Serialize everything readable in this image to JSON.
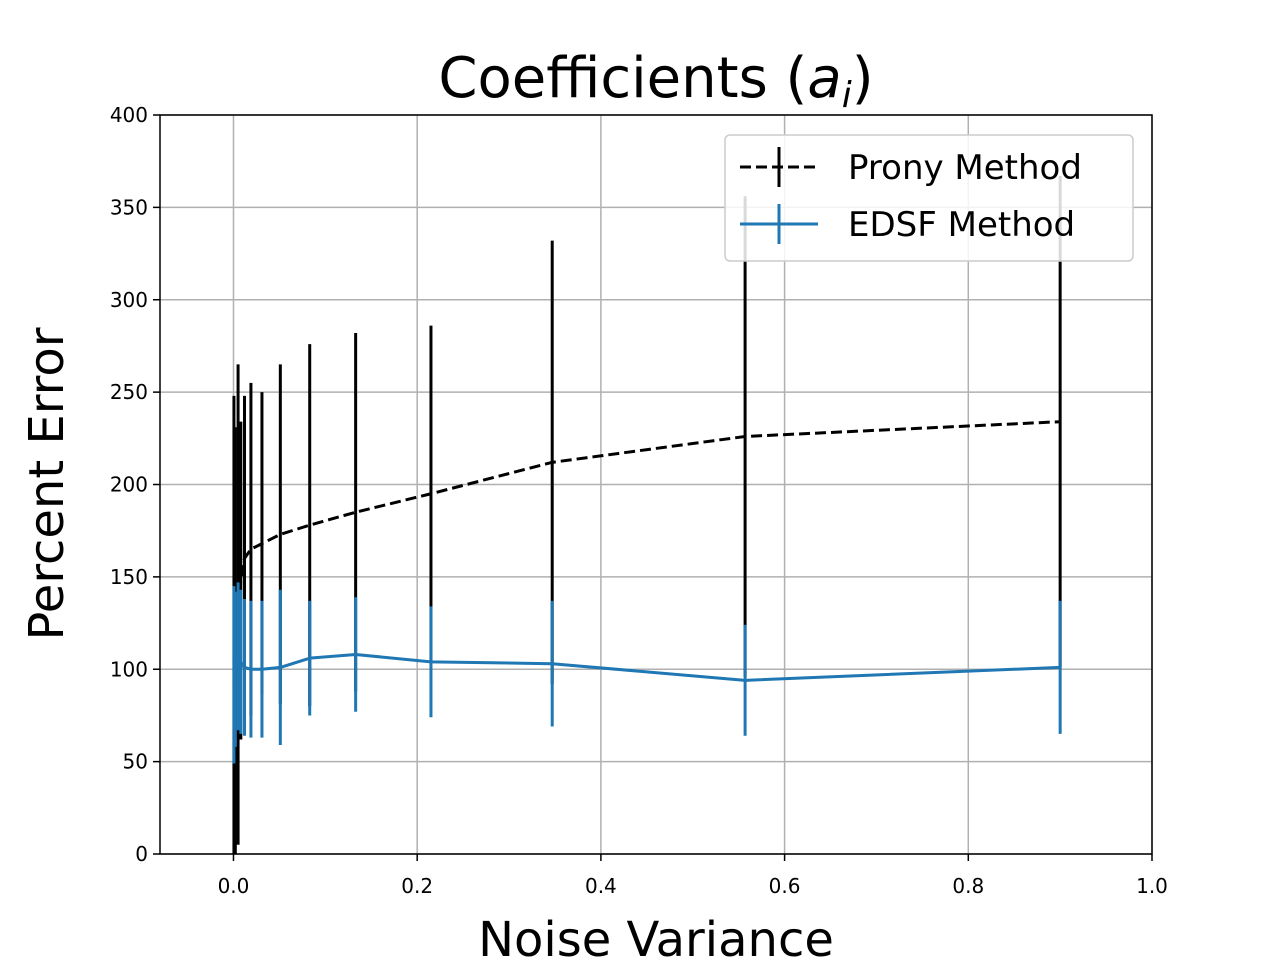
{
  "chart_data": {
    "type": "line",
    "title": "Coefficients (",
    "title_var": "a",
    "title_sub": "i",
    "title_end": ")",
    "xlabel": "Noise Variance",
    "ylabel": "Percent Error",
    "xlim": [
      -0.08,
      1.0
    ],
    "ylim": [
      0,
      400
    ],
    "xticks": [
      0.0,
      0.2,
      0.4,
      0.6,
      0.8,
      1.0
    ],
    "xtick_labels": [
      "0.0",
      "0.2",
      "0.4",
      "0.6",
      "0.8",
      "1.0"
    ],
    "yticks": [
      0,
      50,
      100,
      150,
      200,
      250,
      300,
      350,
      400
    ],
    "ytick_labels": [
      "0",
      "50",
      "100",
      "150",
      "200",
      "250",
      "300",
      "350",
      "400"
    ],
    "grid": true,
    "legend_position": "top-right",
    "series": [
      {
        "name": "Prony Method",
        "color": "#000000",
        "linestyle": "dashed",
        "x": [
          0.0005,
          0.002,
          0.005,
          0.008,
          0.012,
          0.019,
          0.031,
          0.051,
          0.083,
          0.133,
          0.215,
          0.347,
          0.557,
          0.9
        ],
        "y": [
          90,
          115,
          135,
          148,
          160,
          165,
          168,
          173,
          178,
          185,
          195,
          212,
          226,
          234
        ],
        "err": [
          158,
          116,
          130,
          86,
          88,
          90,
          82,
          92,
          98,
          97,
          91,
          120,
          130,
          133
        ]
      },
      {
        "name": "EDSF Method",
        "color": "#1f77b4",
        "linestyle": "solid",
        "x": [
          0.0005,
          0.002,
          0.005,
          0.008,
          0.012,
          0.019,
          0.031,
          0.051,
          0.083,
          0.133,
          0.215,
          0.347,
          0.557,
          0.9
        ],
        "y": [
          97,
          100,
          107,
          104,
          101,
          100,
          100,
          101,
          106,
          108,
          104,
          103,
          94,
          101
        ],
        "err": [
          48,
          42,
          40,
          39,
          37,
          37,
          37,
          42,
          31,
          31,
          30,
          34,
          30,
          36
        ]
      }
    ]
  }
}
